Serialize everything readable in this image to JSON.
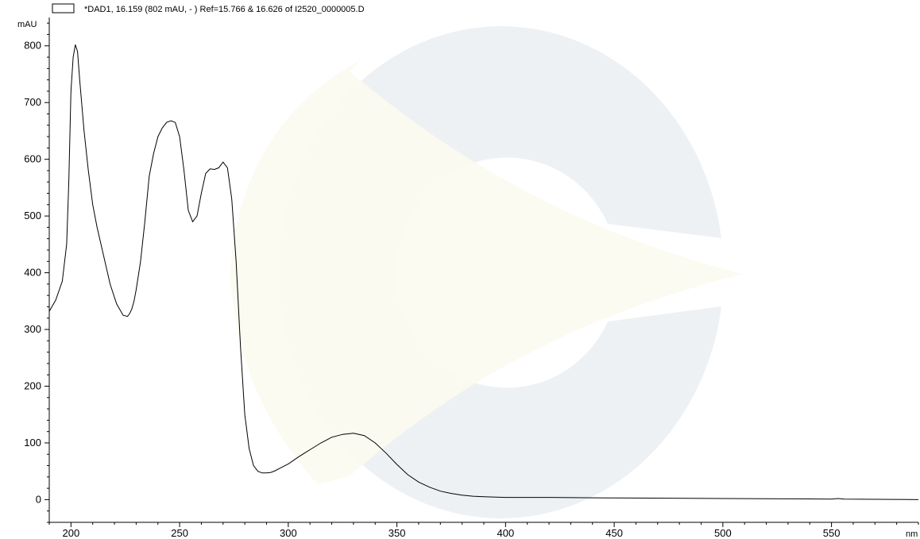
{
  "chart_data": {
    "type": "line",
    "title": "",
    "xlabel": "nm",
    "ylabel": "mAU",
    "xlim": [
      190,
      590
    ],
    "ylim": [
      -40,
      850
    ],
    "x_ticks": [
      200,
      250,
      300,
      350,
      400,
      450,
      500,
      550
    ],
    "y_ticks": [
      0,
      100,
      200,
      300,
      400,
      500,
      600,
      700,
      800
    ],
    "grid": false,
    "legend_position": "top-left",
    "series": [
      {
        "name": "*DAD1, 16.159 (802 mAU, - ) Ref=15.766 & 16.626 of I2520_0000005.D",
        "color": "#000000",
        "x": [
          190,
          193,
          196,
          198,
          199,
          200,
          201,
          202,
          203,
          204,
          206,
          208,
          210,
          212,
          215,
          218,
          221,
          224,
          226,
          227,
          228,
          229,
          230,
          232,
          234,
          236,
          238,
          240,
          242,
          244,
          246,
          248,
          250,
          252,
          254,
          256,
          258,
          260,
          262,
          264,
          266,
          268,
          270,
          272,
          274,
          276,
          278,
          280,
          282,
          284,
          286,
          288,
          290,
          292,
          294,
          296,
          300,
          305,
          310,
          315,
          320,
          325,
          330,
          335,
          340,
          345,
          350,
          355,
          360,
          365,
          370,
          375,
          380,
          385,
          390,
          400,
          420,
          450,
          500,
          550,
          553,
          556,
          590
        ],
        "y": [
          332,
          352,
          385,
          450,
          560,
          720,
          780,
          802,
          790,
          740,
          650,
          580,
          520,
          480,
          430,
          380,
          345,
          325,
          323,
          328,
          336,
          350,
          370,
          420,
          490,
          570,
          610,
          640,
          655,
          665,
          668,
          665,
          640,
          580,
          510,
          490,
          500,
          540,
          575,
          583,
          582,
          585,
          595,
          585,
          530,
          420,
          270,
          150,
          90,
          60,
          50,
          47,
          47,
          48,
          51,
          55,
          63,
          76,
          88,
          100,
          110,
          115,
          117,
          113,
          100,
          82,
          62,
          44,
          31,
          22,
          15,
          11,
          8,
          6,
          5,
          4,
          4,
          3,
          2,
          1,
          2,
          1,
          0
        ]
      }
    ],
    "watermark": "background-logo"
  }
}
